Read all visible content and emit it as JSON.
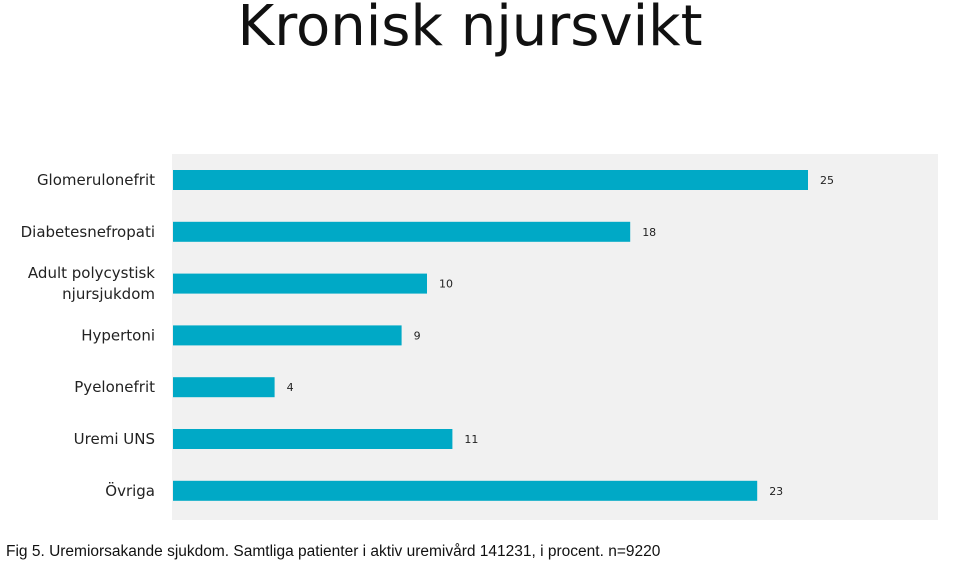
{
  "title": "Kronisk njursvikt",
  "caption": "Fig 5. Uremiorsakande sjukdom. Samtliga patienter i aktiv uremivård 141231, i procent. n=9220",
  "colors": {
    "bar": "#00a9c6",
    "panel": "#f1f1f1",
    "text": "#222222"
  },
  "chart_data": {
    "type": "bar",
    "orientation": "horizontal",
    "categories": [
      [
        "Glomerulonefrit"
      ],
      [
        "Diabetesnefropati"
      ],
      [
        "Adult polycystisk",
        "njursjukdom"
      ],
      [
        "Hypertoni"
      ],
      [
        "Pyelonefrit"
      ],
      [
        "Uremi UNS"
      ],
      [
        "Övriga"
      ]
    ],
    "values": [
      25,
      18,
      10,
      9,
      4,
      11,
      23
    ],
    "data_labels": [
      "25",
      "18",
      "10",
      "9",
      "4",
      "11",
      "23"
    ],
    "xlim": [
      0,
      30
    ],
    "grid": false,
    "legend": "none"
  }
}
